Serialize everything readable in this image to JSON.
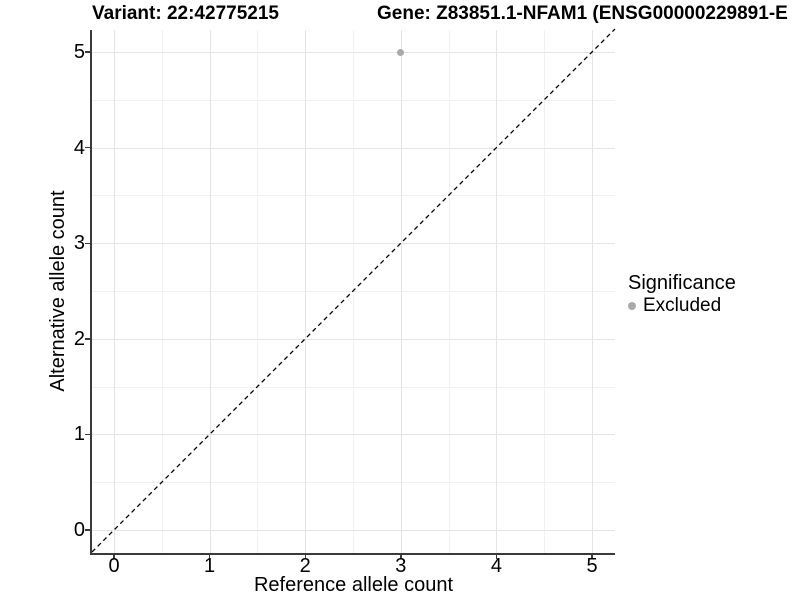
{
  "titles": {
    "variant": "Variant: 22:42775215",
    "gene": "Gene: Z83851.1-NFAM1 (ENSG00000229891-E"
  },
  "chart_data": {
    "type": "scatter",
    "title": "Variant: 22:42775215 | Gene: Z83851.1-NFAM1 (ENSG00000229891-E…)",
    "xlabel": "Reference allele count",
    "ylabel": "Alternative allele count",
    "xlim": [
      -0.23,
      5.24
    ],
    "ylim": [
      -0.24,
      5.23
    ],
    "x_ticks": [
      0,
      1,
      2,
      3,
      4,
      5
    ],
    "y_ticks": [
      0,
      1,
      2,
      3,
      4,
      5
    ],
    "x_minor_ticks": [
      0.5,
      1.5,
      2.5,
      3.5,
      4.5
    ],
    "y_minor_ticks": [
      0.5,
      1.5,
      2.5,
      3.5,
      4.5
    ],
    "grid": "major+minor",
    "series": [
      {
        "name": "Excluded",
        "color": "#a9a9a9",
        "points": [
          {
            "x": 3,
            "y": 5
          }
        ]
      }
    ],
    "reference_line": {
      "equation": "y = x",
      "style": "dashed",
      "color": "#000000",
      "from": [
        -0.23,
        -0.23
      ],
      "to": [
        5.24,
        5.24
      ]
    },
    "legend": {
      "title": "Significance",
      "position": "right",
      "items": [
        {
          "label": "Excluded",
          "color": "#a9a9a9",
          "marker": "circle"
        }
      ]
    }
  },
  "colors": {
    "background": "#ffffff",
    "grid_major": "#e4e4e4",
    "grid_minor": "#f1f1f1",
    "axis_line": "#3a3a3a",
    "point": "#a9a9a9",
    "text": "#000000"
  }
}
